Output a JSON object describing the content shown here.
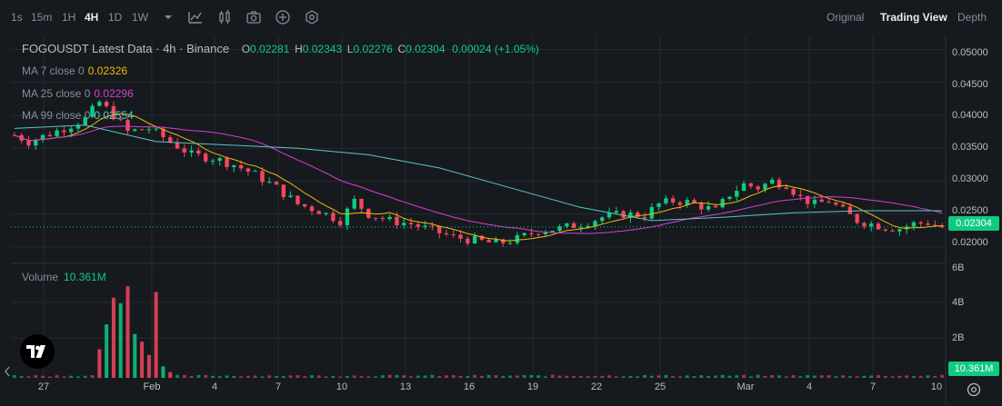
{
  "toolbar": {
    "timeframes": [
      "1s",
      "15m",
      "1H",
      "4H",
      "1D",
      "1W"
    ],
    "active_timeframe": "4H",
    "views": [
      "Original",
      "Trading View",
      "Depth"
    ],
    "active_view": "Trading View"
  },
  "legend": {
    "title": "FOGOUSDT Latest Data · 4h · Binance",
    "open_label": "O",
    "open": "0.02281",
    "high_label": "H",
    "high": "0.02343",
    "low_label": "L",
    "low": "0.02276",
    "close_label": "C",
    "close": "0.02304",
    "change": "0.00024 (+1.05%)",
    "ma7_label": "MA 7 close 0",
    "ma7": "0.02326",
    "ma25_label": "MA 25 close 0",
    "ma25": "0.02296",
    "ma99_label": "MA 99 close 0",
    "ma99": "0.02554",
    "volume_label": "Volume",
    "volume": "10.361M"
  },
  "colors": {
    "up": "#0ecb81",
    "down": "#f6465d",
    "ma7": "#f0b90b",
    "ma25": "#d33fd3",
    "ma99": "#5bc5c9",
    "grid": "#252930"
  },
  "chart_data": {
    "type": "candlestick",
    "x_tick_labels": [
      "27",
      "Feb",
      "4",
      "7",
      "10",
      "13",
      "16",
      "19",
      "22",
      "25",
      "Mar",
      "4",
      "7",
      "10"
    ],
    "price_ticks": [
      "0.05000",
      "0.04500",
      "0.04000",
      "0.03500",
      "0.03000",
      "0.02500",
      "0.02000"
    ],
    "volume_ticks": [
      "6B",
      "4B",
      "2B"
    ],
    "ylim": [
      0.0175,
      0.052
    ],
    "volume_ylim": [
      0,
      6000000000
    ],
    "last_price": "0.02304",
    "last_volume": "10.361M",
    "price_trend": [
      [
        0,
        0.037
      ],
      [
        2,
        0.036
      ],
      [
        5,
        0.0372
      ],
      [
        8,
        0.0385
      ],
      [
        10,
        0.0395
      ],
      [
        12,
        0.042
      ],
      [
        14,
        0.04
      ],
      [
        16,
        0.0375
      ],
      [
        19,
        0.038
      ],
      [
        22,
        0.036
      ],
      [
        25,
        0.034
      ],
      [
        28,
        0.0335
      ],
      [
        31,
        0.0325
      ],
      [
        34,
        0.031
      ],
      [
        37,
        0.029
      ],
      [
        40,
        0.0265
      ],
      [
        43,
        0.0255
      ],
      [
        46,
        0.024
      ],
      [
        48,
        0.027
      ],
      [
        50,
        0.025
      ],
      [
        53,
        0.024
      ],
      [
        56,
        0.0235
      ],
      [
        59,
        0.0225
      ],
      [
        62,
        0.0215
      ],
      [
        65,
        0.021
      ],
      [
        68,
        0.0205
      ],
      [
        71,
        0.0212
      ],
      [
        74,
        0.0225
      ],
      [
        77,
        0.0228
      ],
      [
        80,
        0.0235
      ],
      [
        83,
        0.0245
      ],
      [
        86,
        0.025
      ],
      [
        89,
        0.0248
      ],
      [
        91,
        0.0265
      ],
      [
        93,
        0.027
      ],
      [
        95,
        0.0268
      ],
      [
        97,
        0.0262
      ],
      [
        99,
        0.0255
      ],
      [
        101,
        0.028
      ],
      [
        103,
        0.0295
      ],
      [
        105,
        0.029
      ],
      [
        107,
        0.03
      ],
      [
        109,
        0.0295
      ],
      [
        111,
        0.0275
      ],
      [
        113,
        0.0265
      ],
      [
        115,
        0.027
      ],
      [
        117,
        0.0255
      ],
      [
        119,
        0.024
      ],
      [
        121,
        0.0235
      ],
      [
        123,
        0.023
      ],
      [
        125,
        0.0228
      ],
      [
        127,
        0.0235
      ],
      [
        129,
        0.0237
      ],
      [
        131,
        0.023
      ]
    ],
    "ma99_trend": [
      [
        0,
        0.038
      ],
      [
        10,
        0.0385
      ],
      [
        20,
        0.036
      ],
      [
        30,
        0.0355
      ],
      [
        40,
        0.035
      ],
      [
        50,
        0.034
      ],
      [
        60,
        0.032
      ],
      [
        70,
        0.029
      ],
      [
        80,
        0.026
      ],
      [
        90,
        0.024
      ],
      [
        100,
        0.0245
      ],
      [
        110,
        0.0252
      ],
      [
        120,
        0.0255
      ],
      [
        131,
        0.0255
      ]
    ],
    "volume_spikes": [
      {
        "x": 12,
        "value": 1500000000,
        "dir": "down"
      },
      {
        "x": 13,
        "value": 2800000000,
        "dir": "up"
      },
      {
        "x": 14,
        "value": 4200000000,
        "dir": "down"
      },
      {
        "x": 15,
        "value": 3900000000,
        "dir": "up"
      },
      {
        "x": 16,
        "value": 4800000000,
        "dir": "down"
      },
      {
        "x": 17,
        "value": 2300000000,
        "dir": "up"
      },
      {
        "x": 18,
        "value": 1900000000,
        "dir": "down"
      },
      {
        "x": 19,
        "value": 1200000000,
        "dir": "down"
      },
      {
        "x": 20,
        "value": 4500000000,
        "dir": "down"
      },
      {
        "x": 21,
        "value": 600000000,
        "dir": "up"
      },
      {
        "x": 22,
        "value": 300000000,
        "dir": "down"
      }
    ]
  }
}
